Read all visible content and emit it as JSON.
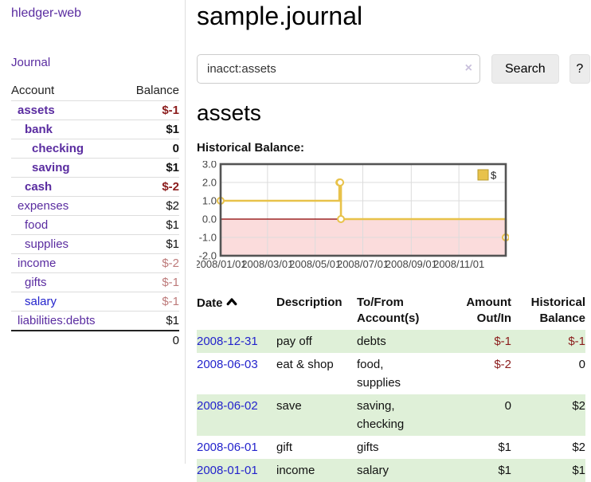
{
  "sidebar": {
    "brand": "hledger-web",
    "nav": [
      {
        "label": "Journal"
      }
    ],
    "accounts_table": {
      "headers": {
        "account": "Account",
        "balance": "Balance"
      },
      "rows": [
        {
          "name": "assets",
          "balance": "$-1",
          "indent": 1,
          "bold": true,
          "name_color": "purple",
          "balance_color": "negative-strong"
        },
        {
          "name": "bank",
          "balance": "$1",
          "indent": 2,
          "bold": true,
          "name_color": "purple",
          "balance_color": "normal"
        },
        {
          "name": "checking",
          "balance": "0",
          "indent": 3,
          "bold": true,
          "name_color": "purple",
          "balance_color": "normal"
        },
        {
          "name": "saving",
          "balance": "$1",
          "indent": 3,
          "bold": true,
          "name_color": "purple",
          "balance_color": "normal"
        },
        {
          "name": "cash",
          "balance": "$-2",
          "indent": 2,
          "bold": true,
          "name_color": "purple",
          "balance_color": "negative-strong"
        },
        {
          "name": "expenses",
          "balance": "$2",
          "indent": 1,
          "bold": false,
          "name_color": "purple",
          "balance_color": "normal"
        },
        {
          "name": "food",
          "balance": "$1",
          "indent": 2,
          "bold": false,
          "name_color": "purple",
          "balance_color": "normal"
        },
        {
          "name": "supplies",
          "balance": "$1",
          "indent": 2,
          "bold": false,
          "name_color": "purple",
          "balance_color": "normal"
        },
        {
          "name": "income",
          "balance": "$-2",
          "indent": 1,
          "bold": false,
          "name_color": "purple",
          "balance_color": "negative-muted"
        },
        {
          "name": "gifts",
          "balance": "$-1",
          "indent": 2,
          "bold": false,
          "name_color": "purple",
          "balance_color": "negative-muted"
        },
        {
          "name": "salary",
          "balance": "$-1",
          "indent": 2,
          "bold": false,
          "name_color": "blue",
          "balance_color": "negative-muted"
        },
        {
          "name": "liabilities:debts",
          "balance": "$1",
          "indent": 1,
          "bold": false,
          "name_color": "purple",
          "balance_color": "normal"
        }
      ],
      "total": "0"
    }
  },
  "main": {
    "title": "sample.journal",
    "search": {
      "value": "inacct:assets",
      "clear_icon": "×",
      "button_label": "Search",
      "help_label": "?"
    },
    "account_heading": "assets",
    "chart_label": "Historical Balance:",
    "register": {
      "headers": {
        "date": "Date",
        "description": "Description",
        "accounts": "To/From\nAccount(s)",
        "amount": "Amount\nOut/In",
        "balance": "Historical\nBalance"
      },
      "sort_icon": "chevron-up",
      "rows": [
        {
          "date": "2008-12-31",
          "description": "pay off",
          "accounts": "debts",
          "amount": "$-1",
          "amount_negative": true,
          "balance": "$-1",
          "balance_negative": true
        },
        {
          "date": "2008-06-03",
          "description": "eat & shop",
          "accounts": "food, supplies",
          "amount": "$-2",
          "amount_negative": true,
          "balance": "0",
          "balance_negative": false
        },
        {
          "date": "2008-06-02",
          "description": "save",
          "accounts": "saving, checking",
          "amount": "0",
          "amount_negative": false,
          "balance": "$2",
          "balance_negative": false
        },
        {
          "date": "2008-06-01",
          "description": "gift",
          "accounts": "gifts",
          "amount": "$1",
          "amount_negative": false,
          "balance": "$2",
          "balance_negative": false
        },
        {
          "date": "2008-01-01",
          "description": "income",
          "accounts": "salary",
          "amount": "$1",
          "amount_negative": false,
          "balance": "$1",
          "balance_negative": false
        }
      ]
    }
  },
  "chart_data": {
    "type": "line",
    "step": true,
    "title": "Historical Balance",
    "legend": {
      "position": "top-right",
      "entries": [
        "$"
      ]
    },
    "series": [
      {
        "name": "$",
        "x": [
          "2008-01-01",
          "2008-06-01",
          "2008-06-02",
          "2008-06-03",
          "2008-12-31"
        ],
        "y": [
          1,
          2,
          2,
          0,
          -1
        ]
      }
    ],
    "xlim": [
      "2008-01-01",
      "2008-12-31"
    ],
    "ylim": [
      -2,
      3
    ],
    "yticks": [
      {
        "value": 3,
        "label": "3.0"
      },
      {
        "value": 2,
        "label": "2.0"
      },
      {
        "value": 1,
        "label": "1.0"
      },
      {
        "value": 0,
        "label": "0.0"
      },
      {
        "value": -1,
        "label": "-1.0"
      },
      {
        "value": -2,
        "label": "-2.0"
      }
    ],
    "xticks": [
      {
        "date": "2008-01-01",
        "label": "2008/01/01"
      },
      {
        "date": "2008-03-01",
        "label": "2008/03/01"
      },
      {
        "date": "2008-05-01",
        "label": "2008/05/01"
      },
      {
        "date": "2008-07-01",
        "label": "2008/07/01"
      },
      {
        "date": "2008-09-01",
        "label": "2008/09/01"
      },
      {
        "date": "2008-11-01",
        "label": "2008/11/01"
      }
    ],
    "grid": true,
    "line_color": "#e8c24a",
    "marker_fill": "#ffffff",
    "negative_fill": "#fbdcdc",
    "zero_line_color": "#8b0000",
    "grid_color": "#dcdcdc",
    "border_color": "#545454",
    "tick_label_color": "#444444"
  },
  "colors": {
    "accent_purple": "#5a2ca0",
    "link_blue": "#2323cc",
    "negative_strong": "#8b1c1c",
    "negative_muted": "#bd7a7a",
    "stripe_green": "#dff0d8"
  }
}
